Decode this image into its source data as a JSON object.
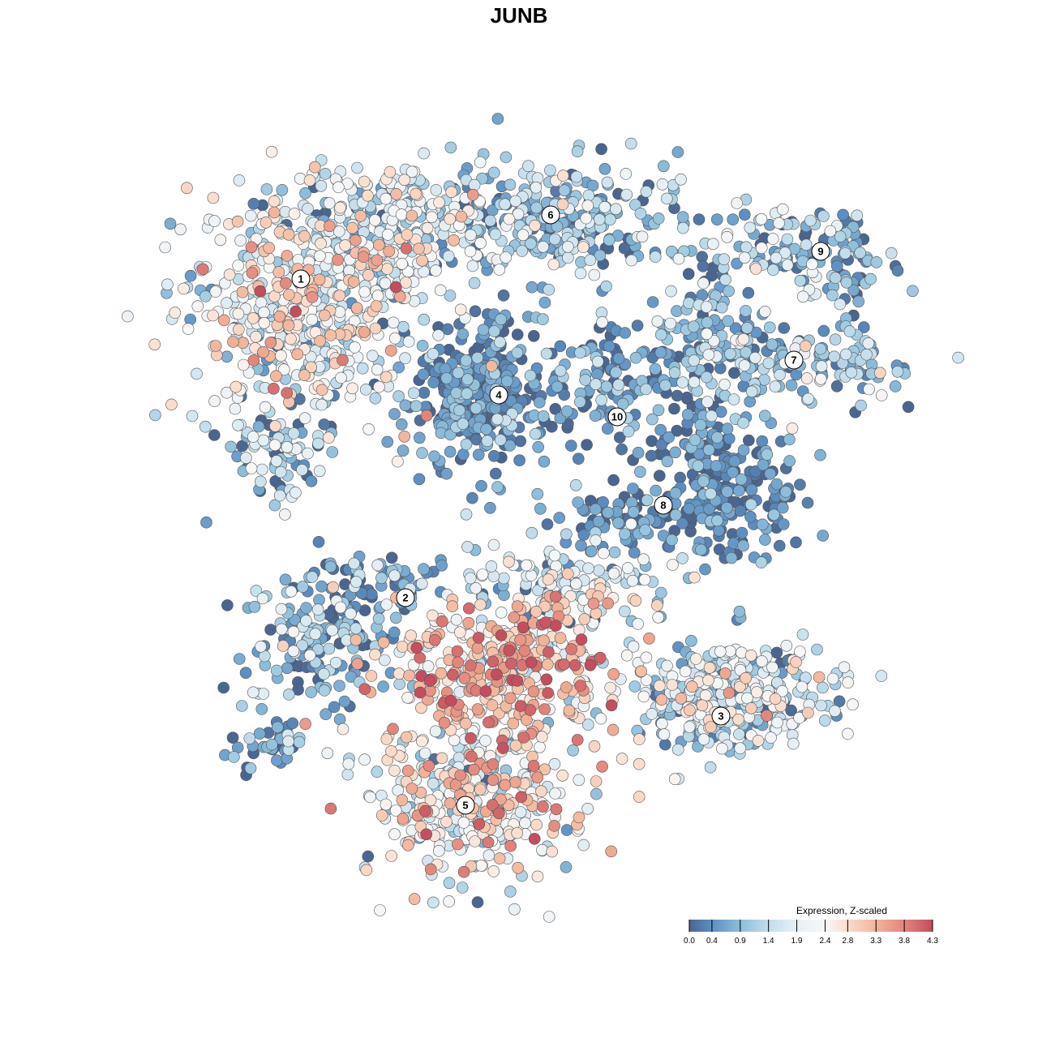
{
  "chart_data": {
    "type": "scatter",
    "title": "JUNB",
    "xlabel": "",
    "ylabel": "",
    "grid": false,
    "axes_visible": false,
    "xlim": [
      -45,
      52
    ],
    "ylim": [
      -50,
      45
    ],
    "color_scale": {
      "title": "Expression, Z-scaled",
      "range": [
        0.0,
        4.3
      ],
      "ticks": [
        "0.0",
        "0.4",
        "0.9",
        "1.4",
        "1.9",
        "2.4",
        "2.8",
        "3.3",
        "3.8",
        "4.3"
      ],
      "tick_values": [
        0.0,
        0.4,
        0.9,
        1.4,
        1.9,
        2.4,
        2.8,
        3.3,
        3.8,
        4.3
      ],
      "colors": [
        "#4a6690",
        "#5d8fc2",
        "#8dbedb",
        "#c2deec",
        "#e8f0f5",
        "#f7f7f7",
        "#fadccb",
        "#f2b49a",
        "#e2857c",
        "#c44d5e"
      ],
      "placement": "bottom-right"
    },
    "cluster_labels": [
      {
        "label": "1",
        "x": -26.9,
        "y": 29.6
      },
      {
        "label": "2",
        "x": -14.0,
        "y": -9.7
      },
      {
        "label": "3",
        "x": 24.9,
        "y": -24.3
      },
      {
        "label": "4",
        "x": -2.5,
        "y": 15.3
      },
      {
        "label": "5",
        "x": -6.6,
        "y": -35.3
      },
      {
        "label": "6",
        "x": 3.9,
        "y": 37.5
      },
      {
        "label": "7",
        "x": 33.9,
        "y": 19.6
      },
      {
        "label": "8",
        "x": 17.8,
        "y": 1.7
      },
      {
        "label": "9",
        "x": 37.2,
        "y": 33.0
      },
      {
        "label": "10",
        "x": 12.1,
        "y": 12.6
      }
    ],
    "point_groups": [
      {
        "cluster": "1",
        "cx": -26,
        "cy": 26,
        "sx": 9,
        "sy": 7,
        "n": 500,
        "expr_mean": 2.0,
        "expr_sd": 0.9
      },
      {
        "cluster": "1",
        "cx": -16,
        "cy": 37,
        "sx": 9,
        "sy": 4,
        "n": 260,
        "expr_mean": 1.7,
        "expr_sd": 0.9
      },
      {
        "cluster": "1",
        "cx": -29,
        "cy": 9,
        "sx": 4,
        "sy": 3,
        "n": 80,
        "expr_mean": 1.1,
        "expr_sd": 0.8
      },
      {
        "cluster": "6",
        "cx": 6,
        "cy": 37,
        "sx": 8,
        "sy": 4,
        "n": 260,
        "expr_mean": 0.9,
        "expr_sd": 0.7
      },
      {
        "cluster": "9",
        "cx": 33,
        "cy": 33,
        "sx": 6,
        "sy": 3,
        "n": 120,
        "expr_mean": 1.0,
        "expr_sd": 0.8
      },
      {
        "cluster": "9",
        "cx": 41,
        "cy": 31,
        "sx": 2,
        "sy": 4,
        "n": 40,
        "expr_mean": 0.6,
        "expr_sd": 0.6
      },
      {
        "cluster": "7",
        "cx": 33,
        "cy": 19,
        "sx": 9,
        "sy": 3,
        "n": 180,
        "expr_mean": 1.0,
        "expr_sd": 0.8
      },
      {
        "cluster": "7",
        "cx": 24,
        "cy": 25,
        "sx": 3,
        "sy": 3,
        "n": 50,
        "expr_mean": 0.8,
        "expr_sd": 0.6
      },
      {
        "cluster": "4",
        "cx": -5,
        "cy": 15,
        "sx": 5,
        "sy": 5,
        "n": 350,
        "expr_mean": 0.4,
        "expr_sd": 0.5
      },
      {
        "cluster": "10",
        "cx": 11,
        "cy": 17,
        "sx": 5,
        "sy": 4,
        "n": 120,
        "expr_mean": 0.5,
        "expr_sd": 0.6
      },
      {
        "cluster": "8",
        "cx": 26,
        "cy": 3,
        "sx": 5,
        "sy": 5,
        "n": 200,
        "expr_mean": 0.3,
        "expr_sd": 0.4
      },
      {
        "cluster": "8",
        "cx": 13,
        "cy": 0,
        "sx": 5,
        "sy": 2,
        "n": 80,
        "expr_mean": 0.4,
        "expr_sd": 0.5
      },
      {
        "cluster": "8",
        "cx": 22,
        "cy": 10,
        "sx": 2,
        "sy": 3,
        "n": 40,
        "expr_mean": 0.3,
        "expr_sd": 0.4
      },
      {
        "cluster": "2",
        "cx": -24,
        "cy": -15,
        "sx": 5,
        "sy": 5,
        "n": 180,
        "expr_mean": 0.9,
        "expr_sd": 0.8
      },
      {
        "cluster": "2",
        "cx": -17,
        "cy": -8,
        "sx": 4,
        "sy": 2,
        "n": 50,
        "expr_mean": 0.6,
        "expr_sd": 0.6
      },
      {
        "cluster": "2",
        "cx": -30,
        "cy": -28,
        "sx": 3,
        "sy": 1.5,
        "n": 40,
        "expr_mean": 0.6,
        "expr_sd": 0.6
      },
      {
        "cluster": "5",
        "cx": -2,
        "cy": -19,
        "sx": 8,
        "sy": 5,
        "n": 400,
        "expr_mean": 2.9,
        "expr_sd": 0.8
      },
      {
        "cluster": "5",
        "cx": -6,
        "cy": -35,
        "sx": 7,
        "sy": 5,
        "n": 350,
        "expr_mean": 2.2,
        "expr_sd": 0.9
      },
      {
        "cluster": "5",
        "cx": 6,
        "cy": -8,
        "sx": 7,
        "sy": 3,
        "n": 150,
        "expr_mean": 1.5,
        "expr_sd": 1.0
      },
      {
        "cluster": "3",
        "cx": 26,
        "cy": -22,
        "sx": 7,
        "sy": 4,
        "n": 350,
        "expr_mean": 1.5,
        "expr_sd": 0.8
      }
    ]
  }
}
